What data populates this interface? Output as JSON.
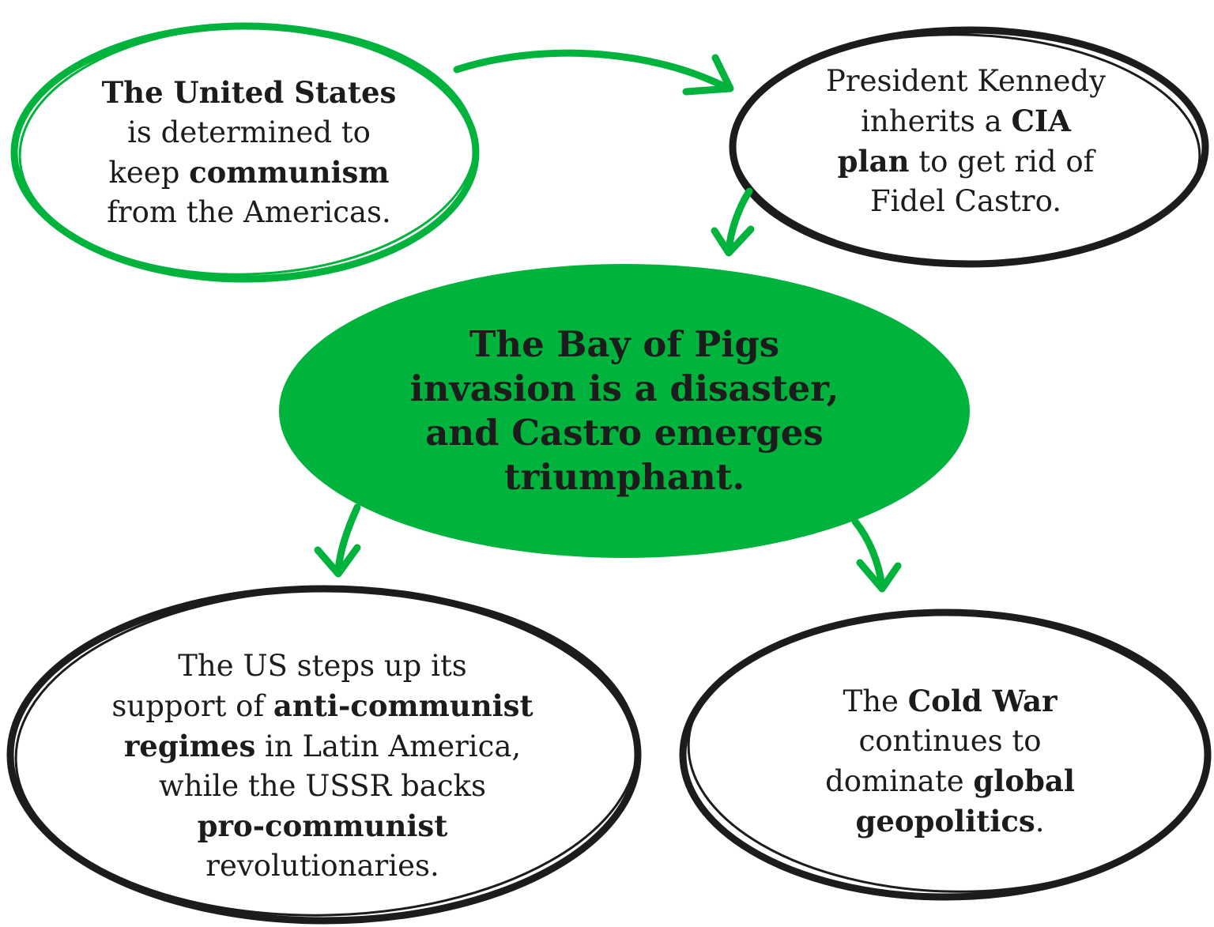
{
  "colors": {
    "green": "#00b33c",
    "ink": "#1c1c1c",
    "background": "#ffffff"
  },
  "nodes": {
    "us": {
      "border": "green",
      "lines": [
        [
          {
            "t": "The United States",
            "b": true
          }
        ],
        [
          {
            "t": "is determined to",
            "b": false
          }
        ],
        [
          {
            "t": "keep ",
            "b": false
          },
          {
            "t": "communism",
            "b": true
          }
        ],
        [
          {
            "t": "from the Americas.",
            "b": false
          }
        ]
      ]
    },
    "kennedy": {
      "border": "black",
      "lines": [
        [
          {
            "t": "President Kennedy",
            "b": false
          }
        ],
        [
          {
            "t": "inherits a ",
            "b": false
          },
          {
            "t": "CIA",
            "b": true
          }
        ],
        [
          {
            "t": "plan",
            "b": true
          },
          {
            "t": " to get rid of",
            "b": false
          }
        ],
        [
          {
            "t": "Fidel Castro.",
            "b": false
          }
        ]
      ]
    },
    "bay_of_pigs": {
      "fill": "green",
      "lines": [
        [
          {
            "t": "The Bay of Pigs",
            "b": true
          }
        ],
        [
          {
            "t": "invasion is a disaster,",
            "b": true
          }
        ],
        [
          {
            "t": "and Castro emerges",
            "b": true
          }
        ],
        [
          {
            "t": "triumphant.",
            "b": true
          }
        ]
      ]
    },
    "latin_america": {
      "border": "black",
      "lines": [
        [
          {
            "t": "The US steps up its",
            "b": false
          }
        ],
        [
          {
            "t": "support of ",
            "b": false
          },
          {
            "t": "anti-communist",
            "b": true
          }
        ],
        [
          {
            "t": "regimes",
            "b": true
          },
          {
            "t": " in Latin America,",
            "b": false
          }
        ],
        [
          {
            "t": "while the USSR backs",
            "b": false
          }
        ],
        [
          {
            "t": "pro-communist",
            "b": true
          }
        ],
        [
          {
            "t": "revolutionaries.",
            "b": false
          }
        ]
      ]
    },
    "cold_war": {
      "border": "black",
      "lines": [
        [
          {
            "t": "The ",
            "b": false
          },
          {
            "t": "Cold War",
            "b": true
          }
        ],
        [
          {
            "t": "continues to",
            "b": false
          }
        ],
        [
          {
            "t": "dominate ",
            "b": false
          },
          {
            "t": "global",
            "b": true
          }
        ],
        [
          {
            "t": "geopolitics",
            "b": true
          },
          {
            "t": ".",
            "b": false
          }
        ]
      ]
    }
  },
  "edges": [
    {
      "from": "us",
      "to": "kennedy"
    },
    {
      "from": "kennedy",
      "to": "bay_of_pigs"
    },
    {
      "from": "bay_of_pigs",
      "to": "latin_america"
    },
    {
      "from": "bay_of_pigs",
      "to": "cold_war"
    }
  ]
}
